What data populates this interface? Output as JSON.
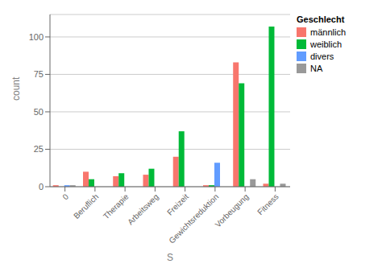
{
  "chart_data": {
    "type": "bar",
    "categories": [
      "0",
      "Beruflich",
      "Therapie",
      "Arbeitsweg",
      "Freizeit",
      "Gewichtsreduktion",
      "Vorbeugung",
      "Fitness"
    ],
    "series": [
      {
        "name": "männlich",
        "color": "#F8766D",
        "values": [
          1,
          10,
          7,
          8,
          20,
          1,
          83,
          2
        ]
      },
      {
        "name": "weiblich",
        "color": "#00BA38",
        "values": [
          0,
          5,
          9,
          12,
          37,
          1,
          69,
          107
        ]
      },
      {
        "name": "divers",
        "color": "#619CFF",
        "values": [
          1,
          0,
          0,
          0,
          0,
          16,
          0,
          0
        ]
      },
      {
        "name": "NA",
        "color": "#999999",
        "values": [
          1,
          0,
          0,
          0,
          0,
          0,
          5,
          2
        ]
      }
    ],
    "x_label": "S",
    "y_label": "count",
    "legend_title": "Geschlecht",
    "ylim": [
      0,
      115
    ],
    "yticks": [
      0,
      25,
      50,
      75,
      100
    ],
    "grid": true,
    "legend": "right"
  }
}
